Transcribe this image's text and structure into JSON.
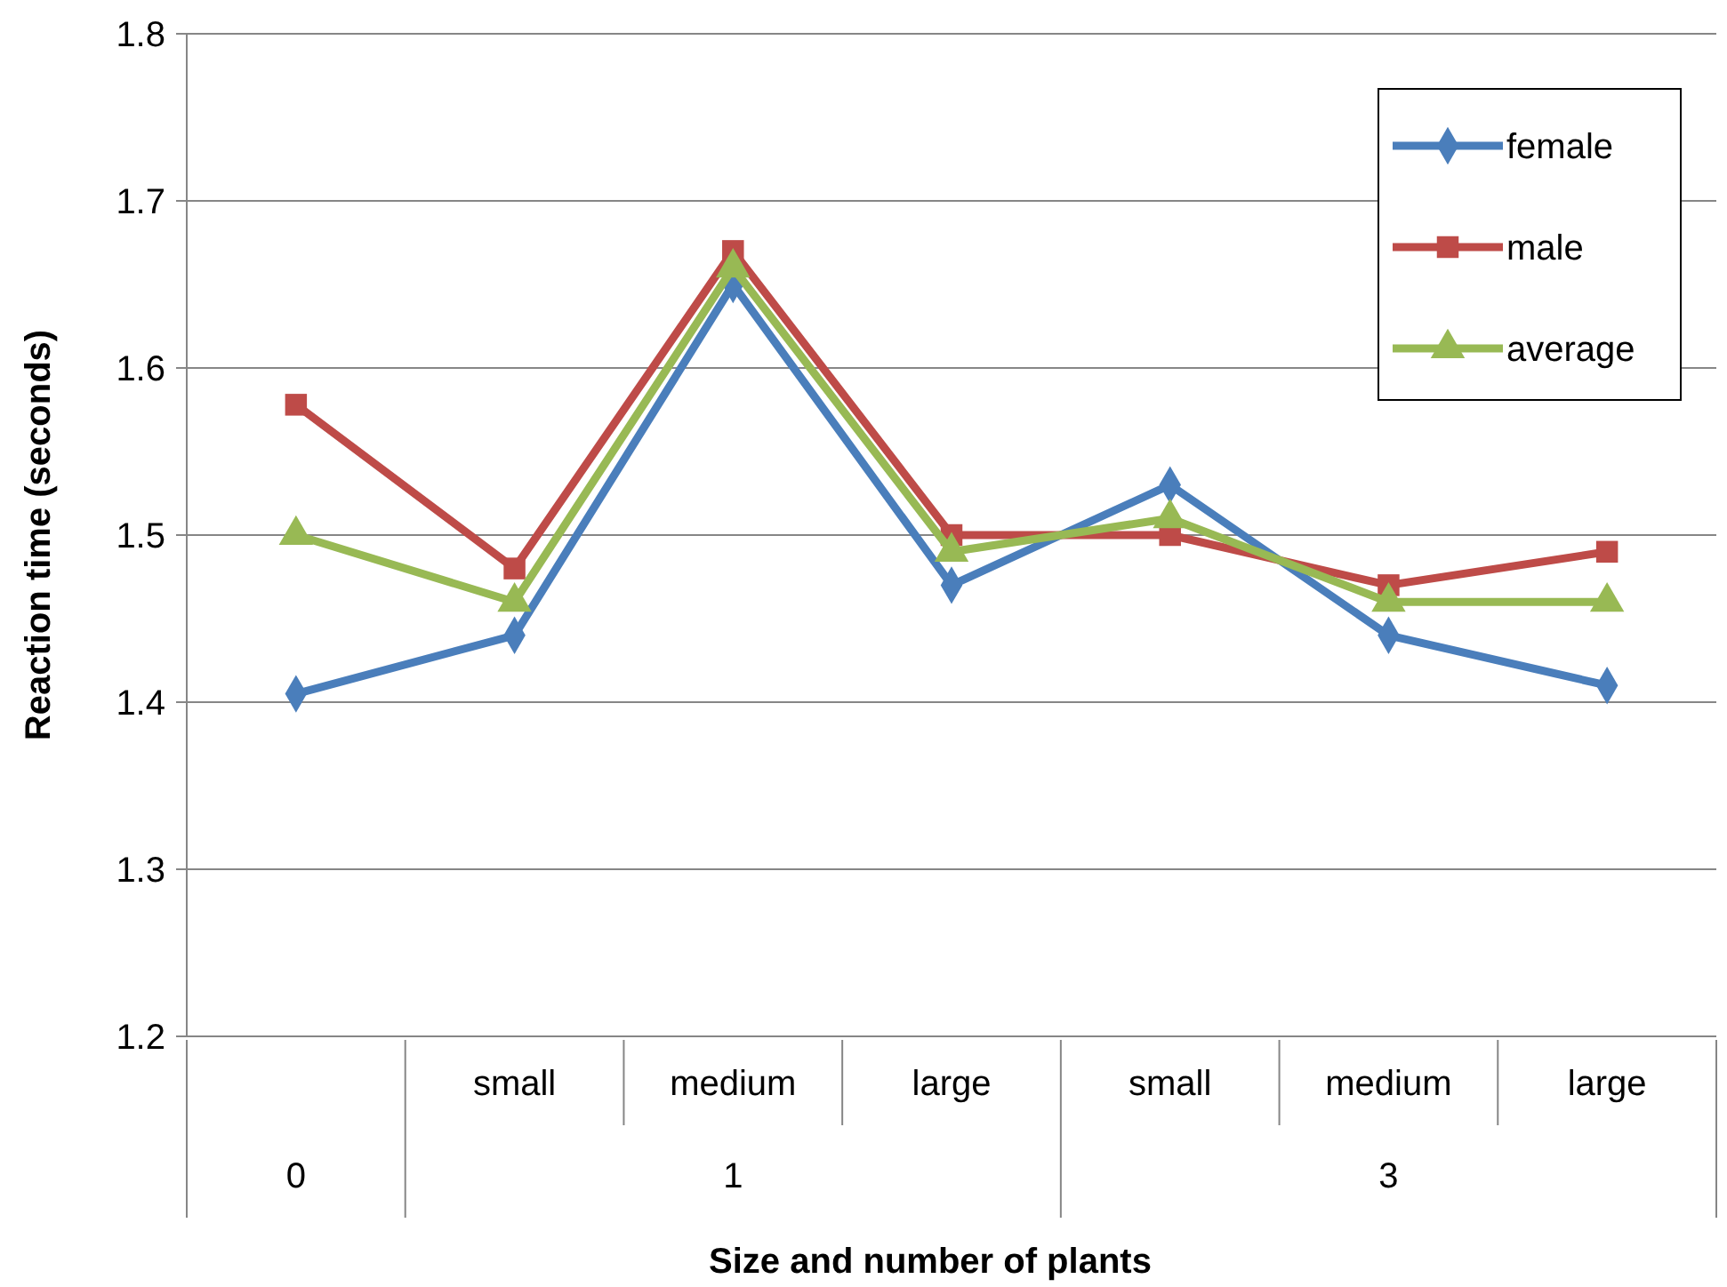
{
  "chart_data": {
    "type": "line",
    "xlabel": "Size and number of plants",
    "ylabel": "Reaction time (seconds)",
    "categories": [
      null,
      "small",
      "medium",
      "large",
      "small",
      "medium",
      "large"
    ],
    "annotations": [
      "0",
      "1",
      "3"
    ],
    "ylim": [
      1.2,
      1.8
    ],
    "yticks": [
      1.2,
      1.3,
      1.4,
      1.5,
      1.6,
      1.7,
      1.8
    ],
    "grid": "y",
    "legend": "top right",
    "series": [
      {
        "name": "female",
        "color": "#4a7ebb",
        "marker": "diamond",
        "values": [
          1.405,
          1.44,
          1.65,
          1.47,
          1.53,
          1.44,
          1.41
        ]
      },
      {
        "name": "male",
        "color": "#be4b48",
        "marker": "square",
        "values": [
          1.578,
          1.48,
          1.67,
          1.5,
          1.5,
          1.47,
          1.49
        ]
      },
      {
        "name": "average",
        "color": "#98b954",
        "marker": "triangle",
        "values": [
          1.5,
          1.46,
          1.66,
          1.49,
          1.51,
          1.46,
          1.46
        ]
      }
    ]
  }
}
